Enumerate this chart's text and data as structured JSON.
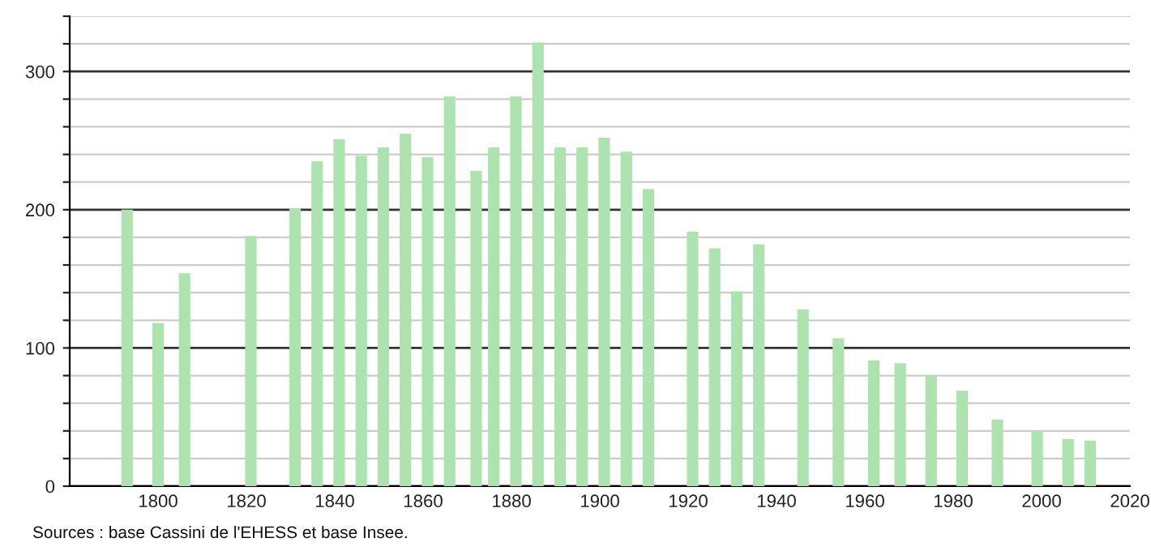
{
  "chart_data": {
    "type": "bar",
    "color": "#ade3ae",
    "x": [
      1793,
      1800,
      1806,
      1821,
      1831,
      1836,
      1841,
      1846,
      1851,
      1856,
      1861,
      1866,
      1872,
      1876,
      1881,
      1886,
      1891,
      1896,
      1901,
      1906,
      1911,
      1921,
      1926,
      1931,
      1936,
      1946,
      1954,
      1962,
      1968,
      1975,
      1982,
      1990,
      1999,
      2006,
      2011
    ],
    "values": [
      200,
      118,
      154,
      181,
      201,
      235,
      251,
      239,
      245,
      255,
      238,
      282,
      228,
      245,
      282,
      321,
      245,
      245,
      252,
      242,
      215,
      184,
      172,
      141,
      175,
      128,
      107,
      91,
      89,
      80,
      69,
      48,
      40,
      34,
      33
    ],
    "xlim": [
      1780,
      2020
    ],
    "xticks": [
      1800,
      1820,
      1840,
      1860,
      1880,
      1900,
      1920,
      1940,
      1960,
      1980,
      2000,
      2020
    ],
    "ylim": [
      0,
      340
    ],
    "yticks": [
      0,
      {
        "value": 20,
        "label": null
      },
      {
        "value": 40,
        "label": null
      },
      {
        "value": 60,
        "label": null
      },
      {
        "value": 80,
        "label": null
      },
      100,
      {
        "value": 120,
        "label": null
      },
      {
        "value": 140,
        "label": null
      },
      {
        "value": 160,
        "label": null
      },
      {
        "value": 180,
        "label": null
      },
      200,
      {
        "value": 220,
        "label": null
      },
      {
        "value": 240,
        "label": null
      },
      {
        "value": 260,
        "label": null
      },
      {
        "value": 280,
        "label": null
      },
      300,
      {
        "value": 320,
        "label": null
      },
      {
        "value": 340,
        "label": null
      }
    ],
    "grid": "y",
    "annotations": [
      "Sources : base Cassini de l'EHESS et base Insee."
    ]
  }
}
